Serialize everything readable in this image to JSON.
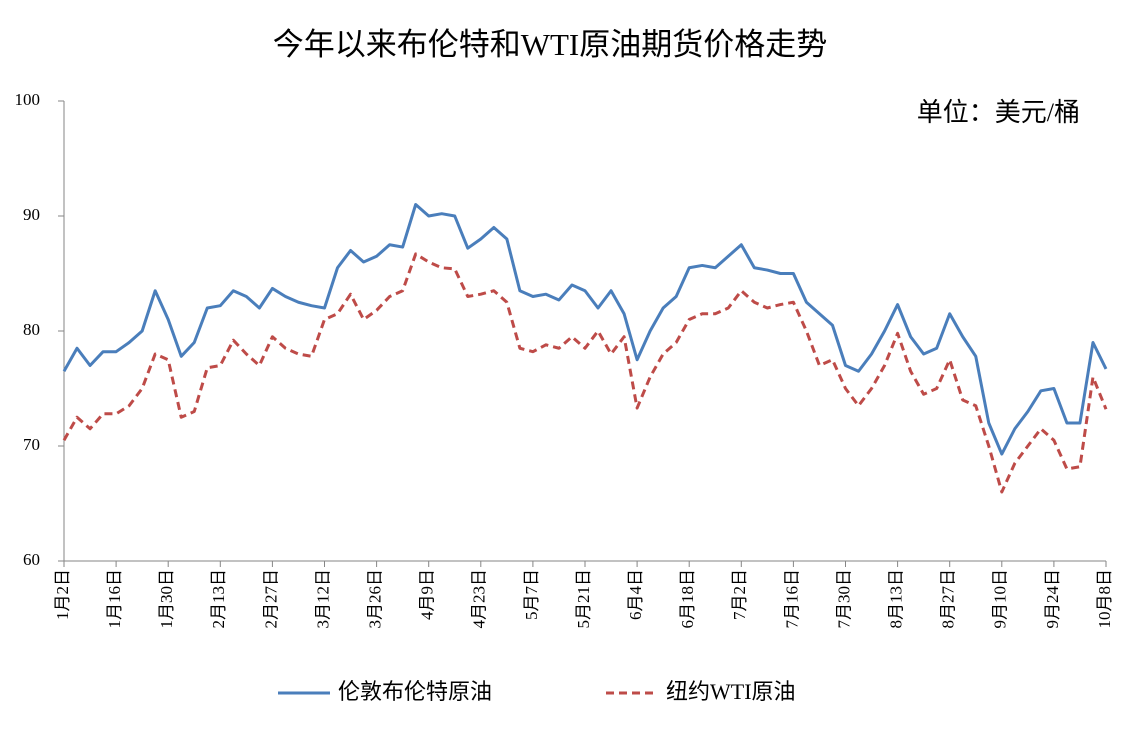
{
  "chart_data": {
    "type": "line",
    "title": "今年以来布伦特和WTI原油期货价格走势",
    "annotation": "单位：美元/桶",
    "categories": [
      "1月2日",
      null,
      null,
      null,
      "1月16日",
      null,
      null,
      null,
      "1月30日",
      null,
      null,
      null,
      "2月13日",
      null,
      null,
      null,
      "2月27日",
      null,
      null,
      null,
      "3月12日",
      null,
      null,
      null,
      "3月26日",
      null,
      null,
      null,
      "4月9日",
      null,
      null,
      null,
      "4月23日",
      null,
      null,
      null,
      "5月7日",
      null,
      null,
      null,
      "5月21日",
      null,
      null,
      null,
      "6月4日",
      null,
      null,
      null,
      "6月18日",
      null,
      null,
      null,
      "7月2日",
      null,
      null,
      null,
      "7月16日",
      null,
      null,
      null,
      "7月30日",
      null,
      null,
      null,
      "8月13日",
      null,
      null,
      null,
      "8月27日",
      null,
      null,
      null,
      "9月10日",
      null,
      null,
      null,
      "9月24日",
      null,
      null,
      null,
      "10月8日"
    ],
    "series": [
      {
        "name": "伦敦布伦特原油",
        "color": "#4a7ebb",
        "dash": false,
        "values": [
          76.5,
          78.5,
          77,
          78.2,
          78.2,
          79,
          80,
          83.5,
          81,
          77.8,
          79,
          82,
          82.2,
          83.5,
          83,
          82,
          83.7,
          83,
          82.5,
          82.2,
          82,
          85.5,
          87,
          86,
          86.5,
          87.5,
          87.3,
          91,
          90,
          90.2,
          90,
          87.2,
          88,
          89,
          88,
          83.5,
          83,
          83.2,
          82.7,
          84,
          83.5,
          82,
          83.5,
          81.5,
          77.5,
          80,
          82,
          83,
          85.5,
          85.7,
          85.5,
          86.5,
          87.5,
          85.5,
          85.3,
          85,
          85,
          82.5,
          81.5,
          80.5,
          77,
          76.5,
          78,
          80,
          82.3,
          79.5,
          78,
          78.5,
          81.5,
          79.5,
          77.8,
          72,
          69.3,
          71.5,
          73,
          74.8,
          75,
          72,
          72,
          79,
          76.7
        ]
      },
      {
        "name": "纽约WTI原油",
        "color": "#be4b48",
        "dash": true,
        "values": [
          70.5,
          72.5,
          71.5,
          72.8,
          72.8,
          73.5,
          75,
          78,
          77.5,
          72.5,
          73,
          76.8,
          77,
          79.2,
          78,
          77,
          79.5,
          78.5,
          78,
          77.8,
          81,
          81.5,
          83.2,
          81,
          81.8,
          83,
          83.5,
          86.7,
          86,
          85.5,
          85.4,
          83,
          83.2,
          83.5,
          82.5,
          78.5,
          78.2,
          78.8,
          78.5,
          79.5,
          78.5,
          80,
          78,
          79.5,
          73.3,
          76,
          78,
          79,
          81,
          81.5,
          81.5,
          82,
          83.5,
          82.5,
          82,
          82.3,
          82.5,
          80,
          77,
          77.5,
          75,
          73.5,
          75,
          77,
          79.8,
          76.5,
          74.5,
          75,
          77.5,
          74,
          73.5,
          70,
          66,
          68.5,
          70,
          71.5,
          70.5,
          68,
          68.2,
          76,
          73.2
        ]
      }
    ],
    "ylim": [
      60,
      100
    ],
    "yticks": [
      60,
      70,
      80,
      90,
      100
    ],
    "grid": false
  }
}
